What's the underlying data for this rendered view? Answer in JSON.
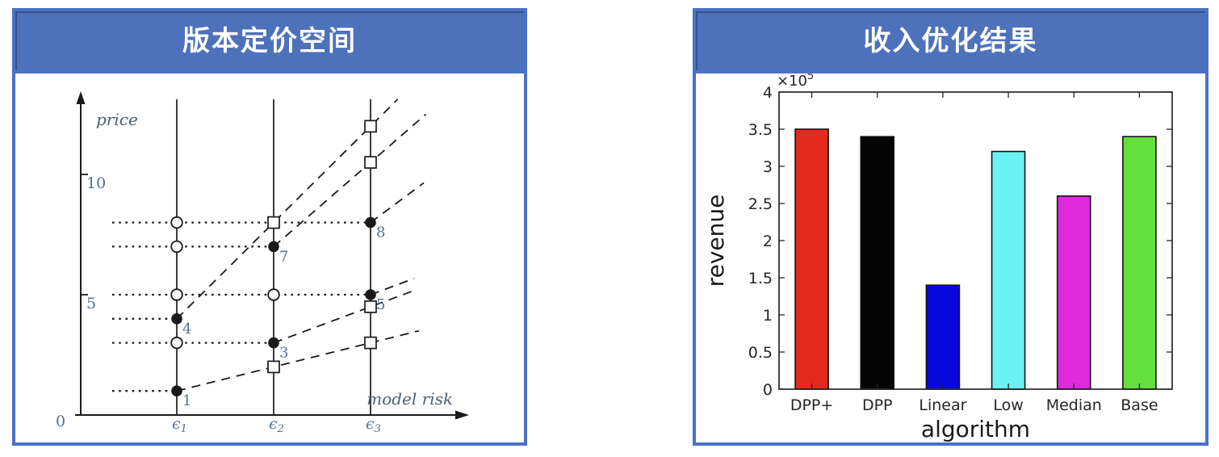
{
  "panels": {
    "left": {
      "title": "版本定价空间"
    },
    "right": {
      "title": "收入优化结果"
    }
  },
  "theme": {
    "panel_border": "#4a72c4",
    "header_fill": "#4e71bb",
    "header_text": "#ffffff",
    "ink": "#1a1a1a",
    "figure_label_color": "#4d6175",
    "numeral_label_color": "#557092",
    "axis_gray": "#262626"
  },
  "chart_data": [
    {
      "type": "scatter",
      "title": "版本定价空间",
      "xlabel": "model risk",
      "ylabel": "price",
      "origin_label": "0",
      "y_ticks": [
        5,
        10
      ],
      "epsilon_ticks": [
        {
          "base": "ϵ",
          "sub": "1",
          "x": 1
        },
        {
          "base": "ϵ",
          "sub": "2",
          "x": 2
        },
        {
          "base": "ϵ",
          "sub": "3",
          "x": 3
        }
      ],
      "vertical_lines_x": [
        1,
        2,
        3
      ],
      "filled_points": [
        {
          "x": 1,
          "price": 1,
          "label": "1"
        },
        {
          "x": 1,
          "price": 4,
          "label": "4"
        },
        {
          "x": 2,
          "price": 3,
          "label": "3"
        },
        {
          "x": 2,
          "price": 7,
          "label": "7"
        },
        {
          "x": 3,
          "price": 5,
          "label": "5"
        },
        {
          "x": 3,
          "price": 8,
          "label": "8"
        }
      ],
      "open_circles": [
        {
          "x": 1,
          "price": 3
        },
        {
          "x": 1,
          "price": 5
        },
        {
          "x": 1,
          "price": 7
        },
        {
          "x": 1,
          "price": 8
        },
        {
          "x": 2,
          "price": 5
        }
      ],
      "open_squares": [
        {
          "x": 2,
          "price": 2
        },
        {
          "x": 2,
          "price": 8
        },
        {
          "x": 3,
          "price": 3
        },
        {
          "x": 3,
          "price": 4.5
        },
        {
          "x": 3,
          "price": 10.5
        },
        {
          "x": 3,
          "price": 12
        }
      ],
      "dotted_levels": [
        {
          "price": 1,
          "to_x": 1
        },
        {
          "price": 3,
          "to_x": 2
        },
        {
          "price": 4,
          "to_x": 1
        },
        {
          "price": 5,
          "to_x": 3
        },
        {
          "price": 7,
          "to_x": 2
        },
        {
          "price": 8,
          "to_x": 3
        }
      ],
      "dashed_lines": [
        {
          "x0": 1,
          "p0": 1,
          "slope": 1,
          "x1": 3.5
        },
        {
          "x0": 2,
          "p0": 3,
          "slope": 1.5,
          "x1": 3.45
        },
        {
          "x0": 3,
          "p0": 5,
          "slope": 1.5,
          "x1": 3.45
        },
        {
          "x0": 1,
          "p0": 4,
          "slope": 4,
          "x1": 3.28
        },
        {
          "x0": 2,
          "p0": 7,
          "slope": 3.5,
          "x1": 3.57
        },
        {
          "x0": 3,
          "p0": 8,
          "slope": 3,
          "x1": 3.55
        }
      ]
    },
    {
      "type": "bar",
      "title": "收入优化结果",
      "categories": [
        "DPP+",
        "DPP",
        "Linear",
        "Low",
        "Median",
        "Base"
      ],
      "values": [
        3.5,
        3.4,
        1.4,
        3.2,
        2.6,
        3.4
      ],
      "colors": [
        "#e5291f",
        "#050505",
        "#0808dd",
        "#6cf2f4",
        "#dd2add",
        "#65df3d"
      ],
      "bar_edge_color": "#141414",
      "xlabel": "algorithm",
      "ylabel": "revenue",
      "ylim": [
        0,
        4
      ],
      "y_ticks": [
        0,
        0.5,
        1,
        1.5,
        2,
        2.5,
        3,
        3.5,
        4
      ],
      "y_tick_labels": [
        "0",
        "0.5",
        "1",
        "1.5",
        "2",
        "2.5",
        "3",
        "3.5",
        "4"
      ],
      "value_scale_base": "×10",
      "value_scale_exp": "5",
      "legend": null,
      "grid": false
    }
  ]
}
